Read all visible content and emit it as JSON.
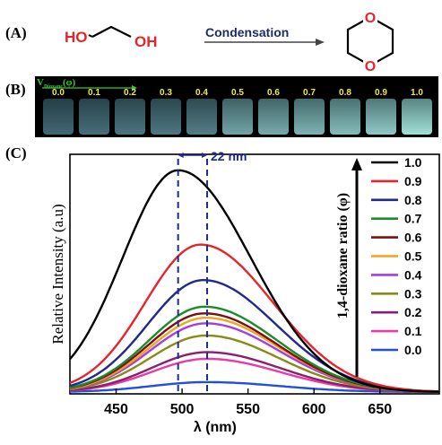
{
  "panel_labels": {
    "a": "(A)",
    "b": "(B)",
    "c": "(C)"
  },
  "scheme": {
    "reactant_oh_left": "HO",
    "reactant_oh_right": "OH",
    "arrow_label": "Condensation",
    "product_o_top": "O",
    "product_o_bottom": "O"
  },
  "photo": {
    "axis_label_main": "V",
    "axis_label_sub": "Dioxane",
    "axis_label_tail": "(φ)",
    "vials": [
      {
        "label": "0.0",
        "glow": 0.05
      },
      {
        "label": "0.1",
        "glow": 0.1
      },
      {
        "label": "0.2",
        "glow": 0.14
      },
      {
        "label": "0.3",
        "glow": 0.16
      },
      {
        "label": "0.4",
        "glow": 0.2
      },
      {
        "label": "0.5",
        "glow": 0.45
      },
      {
        "label": "0.6",
        "glow": 0.5
      },
      {
        "label": "0.7",
        "glow": 0.55
      },
      {
        "label": "0.8",
        "glow": 0.62
      },
      {
        "label": "0.9",
        "glow": 0.7
      },
      {
        "label": "1.0",
        "glow": 0.85
      }
    ]
  },
  "chart_data": {
    "type": "line",
    "xlabel": "λ (nm)",
    "ylabel": "Relative Intensity (a.u)",
    "xlim": [
      415,
      695
    ],
    "ylim": [
      0,
      1.08
    ],
    "xticks": [
      450,
      500,
      550,
      600,
      650
    ],
    "yticks_shown": false,
    "legend_title": "1,4-dioxane ratio (φ)",
    "legend_position": "right",
    "annotation": {
      "text": "22 nm",
      "x_from": 497,
      "x_to": 519
    },
    "series": [
      {
        "name": "1.0",
        "color": "#000000",
        "peak": 497,
        "amplitude": 1.0
      },
      {
        "name": "0.9",
        "color": "#e8242a",
        "peak": 514,
        "amplitude": 0.665
      },
      {
        "name": "0.8",
        "color": "#1f2a8c",
        "peak": 516,
        "amplitude": 0.505
      },
      {
        "name": "0.7",
        "color": "#1a8c2a",
        "peak": 517,
        "amplitude": 0.385
      },
      {
        "name": "0.6",
        "color": "#7a1010",
        "peak": 517,
        "amplitude": 0.355
      },
      {
        "name": "0.5",
        "color": "#f5a21c",
        "peak": 518,
        "amplitude": 0.335
      },
      {
        "name": "0.4",
        "color": "#a43ee0",
        "peak": 518,
        "amplitude": 0.31
      },
      {
        "name": "0.3",
        "color": "#8a8a18",
        "peak": 518,
        "amplitude": 0.255
      },
      {
        "name": "0.2",
        "color": "#8a1f6e",
        "peak": 519,
        "amplitude": 0.18
      },
      {
        "name": "0.1",
        "color": "#e83aa8",
        "peak": 519,
        "amplitude": 0.15
      },
      {
        "name": "0.0",
        "color": "#1f4fe0",
        "peak": 519,
        "amplitude": 0.045
      }
    ]
  }
}
